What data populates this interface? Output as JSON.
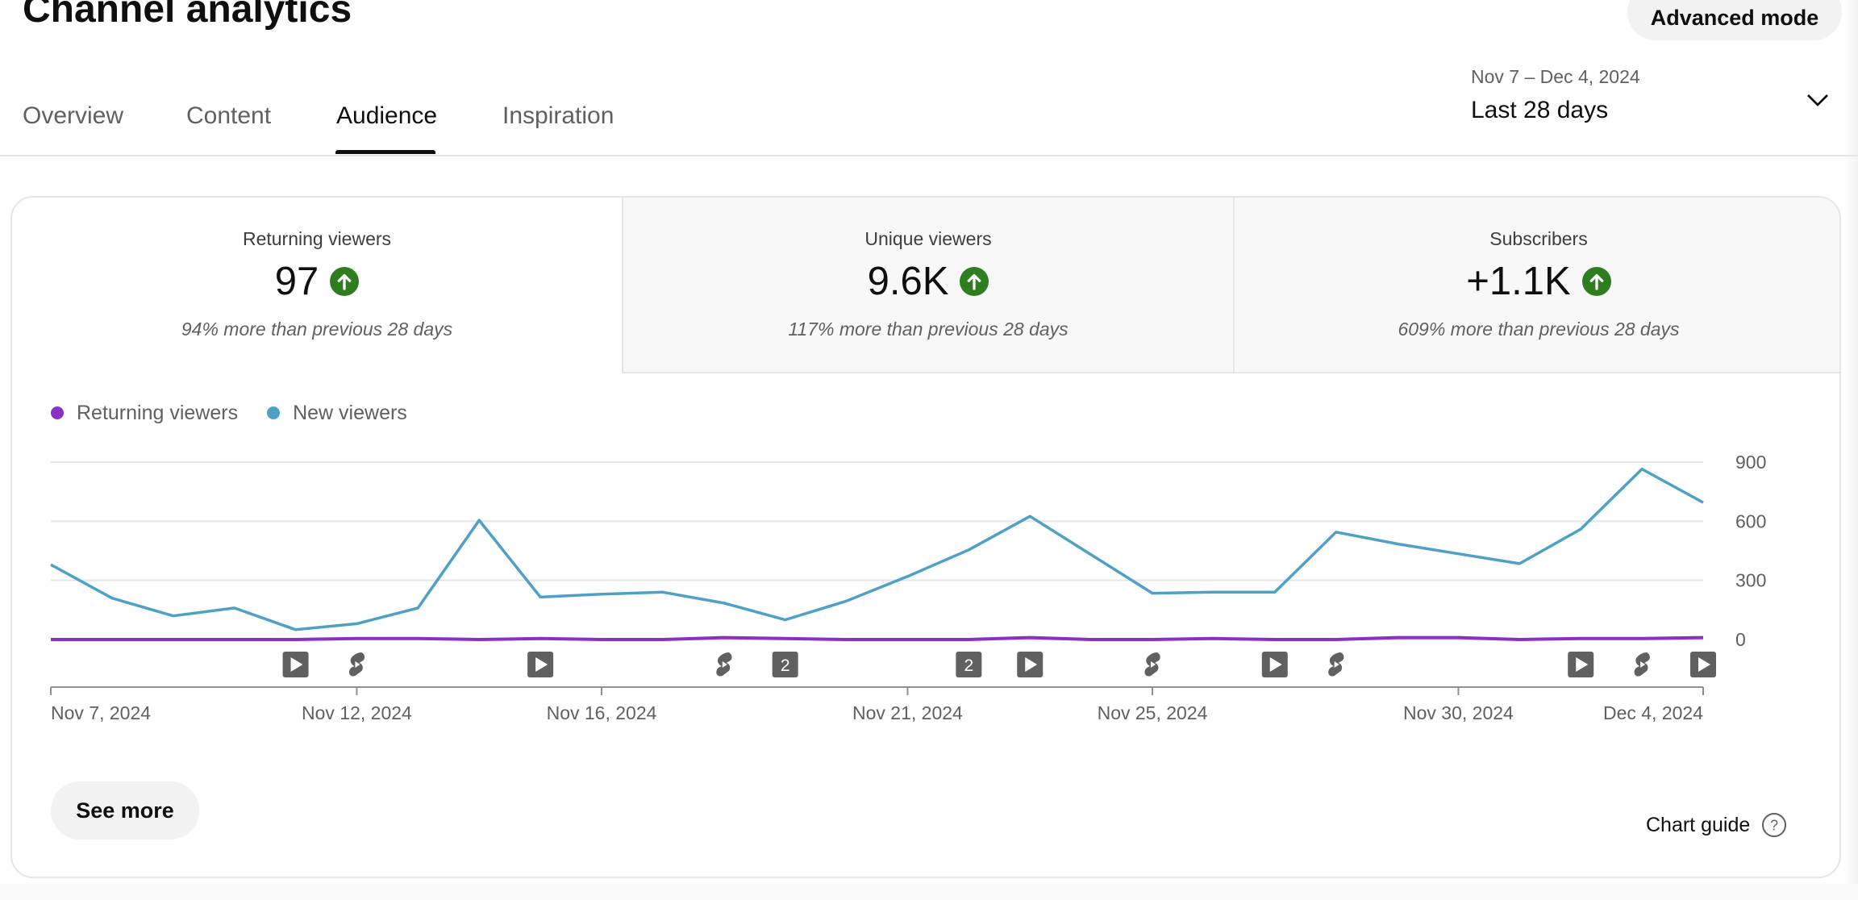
{
  "header": {
    "title": "Channel analytics",
    "advanced_mode": "Advanced mode"
  },
  "tabs": [
    {
      "label": "Overview",
      "active": false
    },
    {
      "label": "Content",
      "active": false
    },
    {
      "label": "Audience",
      "active": true
    },
    {
      "label": "Inspiration",
      "active": false
    }
  ],
  "date_range": {
    "range": "Nov 7 – Dec 4, 2024",
    "label": "Last 28 days",
    "icon": "chevron-down-icon"
  },
  "metrics": [
    {
      "label": "Returning viewers",
      "value": "97",
      "trend": "up",
      "note": "94% more than previous 28 days",
      "selected": true
    },
    {
      "label": "Unique viewers",
      "value": "9.6K",
      "trend": "up",
      "note": "117% more than previous 28 days",
      "selected": false
    },
    {
      "label": "Subscribers",
      "value": "+1.1K",
      "trend": "up",
      "note": "609% more than previous 28 days",
      "selected": false
    }
  ],
  "colors": {
    "returning": "#8b2fc9",
    "new": "#4ea0c6",
    "trend_up": "#2e7d1e",
    "gridline": "#e5e5e5",
    "marker": "#606060"
  },
  "chart_data": {
    "type": "line",
    "x": [
      "Nov 7, 2024",
      "Nov 8, 2024",
      "Nov 9, 2024",
      "Nov 10, 2024",
      "Nov 11, 2024",
      "Nov 12, 2024",
      "Nov 13, 2024",
      "Nov 14, 2024",
      "Nov 15, 2024",
      "Nov 16, 2024",
      "Nov 17, 2024",
      "Nov 18, 2024",
      "Nov 19, 2024",
      "Nov 20, 2024",
      "Nov 21, 2024",
      "Nov 22, 2024",
      "Nov 23, 2024",
      "Nov 24, 2024",
      "Nov 25, 2024",
      "Nov 26, 2024",
      "Nov 27, 2024",
      "Nov 28, 2024",
      "Nov 29, 2024",
      "Nov 30, 2024",
      "Dec 1, 2024",
      "Dec 2, 2024",
      "Dec 3, 2024",
      "Dec 4, 2024"
    ],
    "series": [
      {
        "name": "Returning viewers",
        "values": [
          0,
          0,
          0,
          0,
          0,
          5,
          5,
          0,
          5,
          0,
          0,
          10,
          5,
          0,
          0,
          0,
          10,
          0,
          0,
          5,
          0,
          0,
          10,
          10,
          0,
          5,
          5,
          10
        ]
      },
      {
        "name": "New viewers",
        "values": [
          380,
          210,
          120,
          160,
          50,
          80,
          160,
          605,
          215,
          230,
          240,
          185,
          100,
          195,
          320,
          455,
          625,
          430,
          235,
          240,
          240,
          545,
          485,
          435,
          385,
          560,
          865,
          695
        ]
      }
    ],
    "x_ticks": [
      "Nov 7, 2024",
      "Nov 12, 2024",
      "Nov 16, 2024",
      "Nov 21, 2024",
      "Nov 25, 2024",
      "Nov 30, 2024",
      "Dec 4, 2024"
    ],
    "y_ticks": [
      "900",
      "600",
      "300",
      "0"
    ],
    "ylim": [
      0,
      900
    ],
    "axis_side": "right",
    "grid": true,
    "legend_position": "top-left",
    "markers": [
      {
        "date": "Nov 11, 2024",
        "type": "video"
      },
      {
        "date": "Nov 12, 2024",
        "type": "short"
      },
      {
        "date": "Nov 15, 2024",
        "type": "video"
      },
      {
        "date": "Nov 18, 2024",
        "type": "short"
      },
      {
        "date": "Nov 19, 2024",
        "type": "count",
        "label": "2"
      },
      {
        "date": "Nov 22, 2024",
        "type": "count",
        "label": "2"
      },
      {
        "date": "Nov 23, 2024",
        "type": "video"
      },
      {
        "date": "Nov 25, 2024",
        "type": "short"
      },
      {
        "date": "Nov 27, 2024",
        "type": "video"
      },
      {
        "date": "Nov 28, 2024",
        "type": "short"
      },
      {
        "date": "Dec 2, 2024",
        "type": "video"
      },
      {
        "date": "Dec 3, 2024",
        "type": "short"
      },
      {
        "date": "Dec 4, 2024",
        "type": "video"
      }
    ]
  },
  "footer": {
    "see_more": "See more",
    "chart_guide": "Chart guide",
    "chart_guide_icon": "help-icon"
  }
}
